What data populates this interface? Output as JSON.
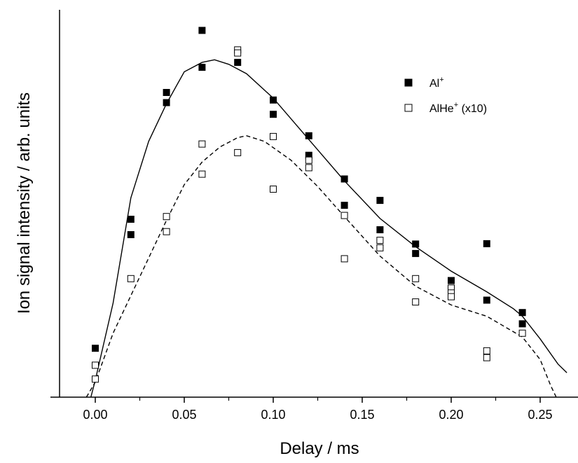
{
  "chart_data": {
    "type": "scatter",
    "title": "",
    "xlabel": "Delay / ms",
    "ylabel": "Ion signal intensity / arb. units",
    "xlim": [
      -0.02,
      0.265
    ],
    "ylim": [
      0,
      100
    ],
    "xticks": [
      0.0,
      0.05,
      0.1,
      0.15,
      0.2,
      0.25
    ],
    "xtick_labels": [
      "0.00",
      "0.05",
      "0.10",
      "0.15",
      "0.20",
      "0.25"
    ],
    "yticks_labeled": false,
    "grid": false,
    "legend_position": "top-right",
    "series": [
      {
        "name": "Al",
        "name_superscript": "+",
        "marker": "filled-square",
        "color": "#000000",
        "points": [
          [
            0.0,
            13.0
          ],
          [
            0.02,
            47.3
          ],
          [
            0.02,
            43.2
          ],
          [
            0.04,
            81.0
          ],
          [
            0.04,
            78.3
          ],
          [
            0.06,
            97.5
          ],
          [
            0.06,
            87.7
          ],
          [
            0.08,
            89.0
          ],
          [
            0.1,
            79.0
          ],
          [
            0.1,
            75.2
          ],
          [
            0.12,
            69.5
          ],
          [
            0.12,
            64.3
          ],
          [
            0.14,
            58.0
          ],
          [
            0.14,
            51.0
          ],
          [
            0.16,
            52.3
          ],
          [
            0.16,
            44.5
          ],
          [
            0.18,
            40.7
          ],
          [
            0.18,
            38.2
          ],
          [
            0.2,
            31.0
          ],
          [
            0.22,
            40.8
          ],
          [
            0.22,
            25.8
          ],
          [
            0.24,
            22.5
          ],
          [
            0.24,
            19.5
          ]
        ]
      },
      {
        "name": "AlHe",
        "name_superscript": "+",
        "name_suffix": " (x10)",
        "marker": "open-square",
        "color": "#000000",
        "points": [
          [
            0.0,
            8.5
          ],
          [
            0.0,
            4.8
          ],
          [
            0.02,
            31.5
          ],
          [
            0.04,
            48.0
          ],
          [
            0.04,
            44.0
          ],
          [
            0.06,
            67.3
          ],
          [
            0.06,
            59.3
          ],
          [
            0.08,
            92.3
          ],
          [
            0.08,
            91.5
          ],
          [
            0.08,
            65.0
          ],
          [
            0.1,
            69.3
          ],
          [
            0.1,
            55.3
          ],
          [
            0.12,
            63.0
          ],
          [
            0.12,
            61.0
          ],
          [
            0.14,
            48.3
          ],
          [
            0.14,
            36.8
          ],
          [
            0.16,
            41.7
          ],
          [
            0.16,
            39.7
          ],
          [
            0.18,
            31.5
          ],
          [
            0.18,
            25.3
          ],
          [
            0.2,
            29.0
          ],
          [
            0.2,
            27.7
          ],
          [
            0.2,
            26.7
          ],
          [
            0.22,
            12.3
          ],
          [
            0.22,
            10.5
          ],
          [
            0.24,
            17.0
          ]
        ]
      }
    ],
    "fit_lines": [
      {
        "series": "Al",
        "style": "solid",
        "points": [
          [
            -0.0025,
            0
          ],
          [
            0.0,
            4.5
          ],
          [
            0.01,
            25
          ],
          [
            0.02,
            53
          ],
          [
            0.03,
            68
          ],
          [
            0.04,
            78
          ],
          [
            0.05,
            86.5
          ],
          [
            0.06,
            89
          ],
          [
            0.067,
            89.7
          ],
          [
            0.075,
            88.5
          ],
          [
            0.085,
            86
          ],
          [
            0.1,
            79.5
          ],
          [
            0.12,
            68.5
          ],
          [
            0.14,
            57.5
          ],
          [
            0.16,
            47.5
          ],
          [
            0.18,
            40
          ],
          [
            0.2,
            33.5
          ],
          [
            0.22,
            28
          ],
          [
            0.235,
            23.5
          ],
          [
            0.24,
            21.5
          ],
          [
            0.25,
            15.5
          ],
          [
            0.26,
            8.8
          ],
          [
            0.265,
            6.5
          ]
        ]
      },
      {
        "series": "AlHe",
        "style": "dashed",
        "points": [
          [
            -0.005,
            0
          ],
          [
            0.0,
            4
          ],
          [
            0.01,
            17
          ],
          [
            0.02,
            27
          ],
          [
            0.03,
            37
          ],
          [
            0.04,
            47
          ],
          [
            0.05,
            56.5
          ],
          [
            0.06,
            62.5
          ],
          [
            0.07,
            66.5
          ],
          [
            0.08,
            69
          ],
          [
            0.085,
            69.5
          ],
          [
            0.095,
            68
          ],
          [
            0.11,
            63
          ],
          [
            0.125,
            56
          ],
          [
            0.14,
            48
          ],
          [
            0.16,
            37.5
          ],
          [
            0.18,
            29.5
          ],
          [
            0.2,
            24.5
          ],
          [
            0.22,
            21.5
          ],
          [
            0.24,
            16
          ],
          [
            0.25,
            10
          ],
          [
            0.256,
            3
          ],
          [
            0.259,
            0
          ]
        ]
      }
    ]
  }
}
